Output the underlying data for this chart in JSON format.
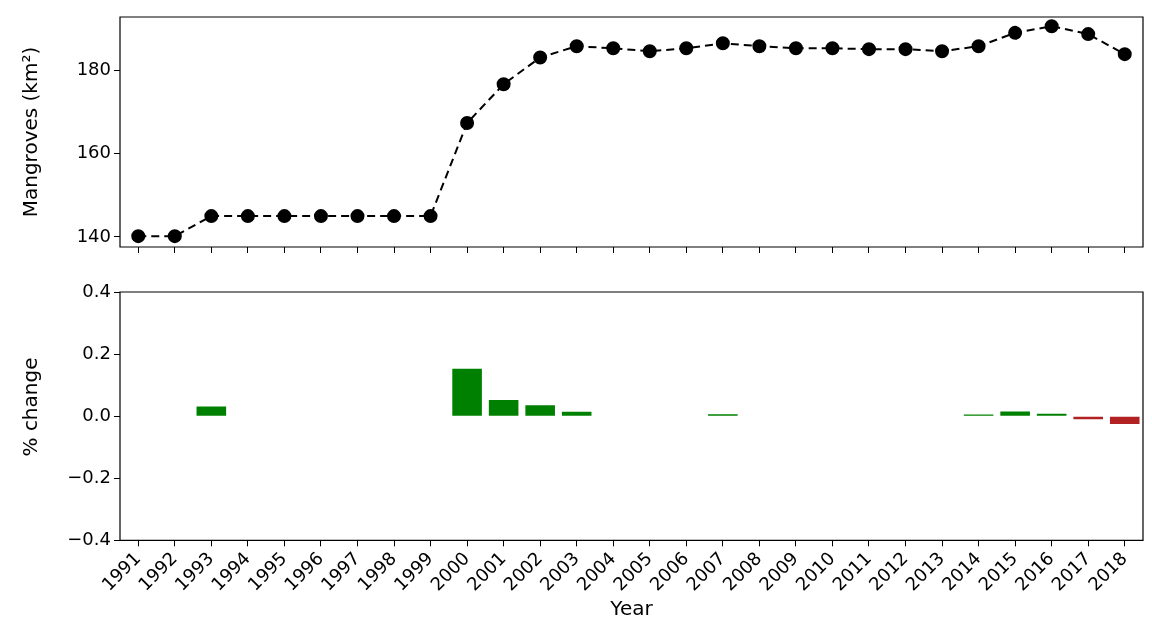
{
  "chart_data": [
    {
      "type": "line",
      "ylabel": "Mangroves (km²)",
      "categories": [
        "1991",
        "1992",
        "1993",
        "1994",
        "1995",
        "1996",
        "1997",
        "1998",
        "1999",
        "2000",
        "2001",
        "2002",
        "2003",
        "2004",
        "2005",
        "2006",
        "2007",
        "2008",
        "2009",
        "2010",
        "2011",
        "2012",
        "2013",
        "2014",
        "2015",
        "2016",
        "2017",
        "2018"
      ],
      "series": [
        {
          "color": "#000000",
          "values": [
            140.2,
            140.2,
            145.0,
            145.0,
            145.0,
            145.0,
            145.0,
            145.0,
            145.0,
            167.3,
            176.6,
            183.0,
            185.7,
            185.2,
            184.5,
            185.2,
            186.4,
            185.7,
            185.2,
            185.2,
            185.0,
            185.0,
            184.5,
            185.7,
            188.9,
            190.5,
            188.6,
            183.8
          ]
        }
      ],
      "ylim": [
        137.6,
        192.7
      ],
      "yticks": [
        140,
        160,
        180
      ],
      "tick_labels": "y",
      "marker": "circle",
      "line_style": "dashed",
      "grid": false,
      "legend": false
    },
    {
      "type": "bar",
      "xlabel": "Year",
      "ylabel": "% change",
      "categories": [
        "1991",
        "1992",
        "1993",
        "1994",
        "1995",
        "1996",
        "1997",
        "1998",
        "1999",
        "2000",
        "2001",
        "2002",
        "2003",
        "2004",
        "2005",
        "2006",
        "2007",
        "2008",
        "2009",
        "2010",
        "2011",
        "2012",
        "2013",
        "2014",
        "2015",
        "2016",
        "2017",
        "2018"
      ],
      "values": [
        0,
        0,
        0.031,
        0,
        0,
        0,
        0,
        0,
        0,
        0.153,
        0.052,
        0.035,
        0.014,
        0,
        0,
        0,
        0.006,
        0,
        0,
        0,
        0,
        0,
        0,
        0.005,
        0.015,
        0.008,
        -0.01,
        -0.025
      ],
      "colors": [
        "#008000",
        "#008000",
        "#008000",
        "#008000",
        "#008000",
        "#008000",
        "#008000",
        "#008000",
        "#008000",
        "#008000",
        "#008000",
        "#008000",
        "#008000",
        "#008000",
        "#008000",
        "#008000",
        "#008000",
        "#008000",
        "#008000",
        "#008000",
        "#008000",
        "#008000",
        "#008000",
        "#008000",
        "#008000",
        "#008000",
        "#b22222",
        "#b22222"
      ],
      "ylim": [
        -0.4,
        0.4
      ],
      "yticks": [
        {
          "value": -0.4,
          "label": "−0.4"
        },
        {
          "value": -0.2,
          "label": "−0.2"
        },
        {
          "value": 0,
          "label": "0.0"
        },
        {
          "value": 0.2,
          "label": "0.2"
        },
        {
          "value": 0.4,
          "label": "0.4"
        }
      ],
      "grid": false,
      "legend": false
    }
  ]
}
